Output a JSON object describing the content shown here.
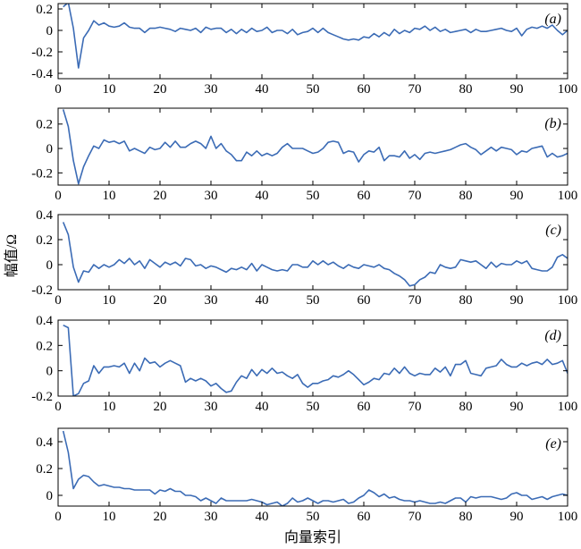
{
  "figure": {
    "ylabel": "幅值/Ω",
    "xlabel": "向量索引",
    "line_color": "#3b6bb5"
  },
  "chart_data": [
    {
      "type": "line",
      "panel_label": "(a)",
      "xlim": [
        0,
        100
      ],
      "ylim": [
        -0.45,
        0.25
      ],
      "xticks": [
        0,
        10,
        20,
        30,
        40,
        50,
        60,
        70,
        80,
        90,
        100
      ],
      "yticks": [
        0.2,
        0,
        -0.2,
        -0.4
      ],
      "ytick_labels": [
        "0.2",
        "0",
        "-0.2",
        "-0.4"
      ],
      "grid": false,
      "x_start": 1,
      "y": [
        0.22,
        0.26,
        0.02,
        -0.35,
        -0.07,
        0.0,
        0.09,
        0.05,
        0.07,
        0.04,
        0.03,
        0.04,
        0.07,
        0.03,
        0.02,
        0.02,
        -0.02,
        0.02,
        0.02,
        0.03,
        0.02,
        0.01,
        -0.01,
        0.02,
        0.01,
        0.0,
        0.02,
        -0.02,
        0.03,
        0.01,
        0.02,
        0.02,
        -0.02,
        0.01,
        -0.03,
        0.01,
        -0.02,
        0.02,
        -0.01,
        0.0,
        0.03,
        -0.02,
        0.0,
        0.0,
        -0.03,
        0.01,
        -0.04,
        -0.02,
        -0.01,
        0.02,
        -0.02,
        0.02,
        -0.02,
        -0.04,
        -0.06,
        -0.08,
        -0.09,
        -0.08,
        -0.09,
        -0.06,
        -0.07,
        -0.03,
        -0.06,
        -0.02,
        -0.05,
        0.01,
        -0.03,
        0.0,
        -0.02,
        0.02,
        0.01,
        0.04,
        0.0,
        0.03,
        -0.01,
        0.01,
        -0.02,
        -0.01,
        0.0,
        0.01,
        -0.02,
        0.01,
        -0.01,
        -0.01,
        0.0,
        0.01,
        0.02,
        0.0,
        -0.01,
        0.02,
        -0.05,
        0.01,
        0.03,
        0.02,
        0.04,
        0.02,
        0.05,
        0.0,
        -0.04,
        0.0,
        0.01
      ]
    },
    {
      "type": "line",
      "panel_label": "(b)",
      "xlim": [
        0,
        100
      ],
      "ylim": [
        -0.3,
        0.33
      ],
      "xticks": [
        0,
        10,
        20,
        30,
        40,
        50,
        60,
        70,
        80,
        90,
        100
      ],
      "yticks": [
        0.2,
        0,
        -0.2
      ],
      "ytick_labels": [
        "0.2",
        "0",
        "-0.2"
      ],
      "grid": false,
      "x_start": 1,
      "y": [
        0.32,
        0.18,
        -0.1,
        -0.29,
        -0.15,
        -0.06,
        0.02,
        0.0,
        0.07,
        0.05,
        0.06,
        0.04,
        0.06,
        -0.02,
        0.0,
        -0.02,
        -0.04,
        0.01,
        -0.01,
        0.0,
        0.05,
        0.01,
        0.06,
        0.01,
        0.01,
        0.04,
        0.06,
        0.04,
        0.0,
        0.1,
        0.0,
        0.04,
        -0.02,
        -0.05,
        -0.1,
        -0.1,
        -0.03,
        -0.06,
        -0.02,
        -0.06,
        -0.04,
        -0.06,
        -0.04,
        0.01,
        0.04,
        0.0,
        0.0,
        0.0,
        -0.02,
        -0.04,
        -0.03,
        0.0,
        0.05,
        0.06,
        0.05,
        -0.04,
        -0.02,
        -0.03,
        -0.11,
        -0.05,
        -0.02,
        -0.03,
        0.01,
        -0.1,
        -0.06,
        -0.06,
        -0.07,
        -0.02,
        -0.08,
        -0.05,
        -0.09,
        -0.04,
        -0.03,
        -0.04,
        -0.03,
        -0.02,
        -0.01,
        0.01,
        0.03,
        0.04,
        0.01,
        -0.01,
        -0.05,
        -0.02,
        0.01,
        -0.02,
        0.01,
        0.0,
        -0.01,
        -0.05,
        -0.02,
        -0.03,
        0.0,
        0.01,
        0.02,
        -0.07,
        -0.04,
        -0.07,
        -0.06,
        -0.04,
        0.01
      ]
    },
    {
      "type": "line",
      "panel_label": "(c)",
      "xlim": [
        0,
        100
      ],
      "ylim": [
        -0.2,
        0.4
      ],
      "xticks": [
        0,
        10,
        20,
        30,
        40,
        50,
        60,
        70,
        80,
        90,
        100
      ],
      "yticks": [
        0.4,
        0.2,
        0,
        -0.2
      ],
      "ytick_labels": [
        "0.4",
        "0.2",
        "0",
        "-0.2"
      ],
      "grid": false,
      "x_start": 1,
      "y": [
        0.34,
        0.24,
        -0.02,
        -0.14,
        -0.05,
        -0.06,
        0.0,
        -0.03,
        0.0,
        -0.02,
        0.0,
        0.04,
        0.01,
        0.05,
        0.0,
        0.03,
        -0.03,
        0.04,
        0.01,
        -0.02,
        0.02,
        0.0,
        0.02,
        -0.01,
        0.05,
        0.04,
        -0.01,
        0.0,
        -0.03,
        -0.01,
        -0.02,
        -0.04,
        -0.06,
        -0.03,
        -0.04,
        -0.02,
        -0.04,
        0.01,
        -0.05,
        0.0,
        -0.02,
        -0.04,
        -0.05,
        -0.04,
        -0.05,
        0.0,
        0.0,
        -0.02,
        -0.02,
        0.03,
        0.0,
        0.03,
        0.0,
        0.02,
        -0.01,
        -0.03,
        0.0,
        -0.02,
        -0.03,
        0.0,
        -0.01,
        -0.02,
        0.0,
        -0.03,
        -0.04,
        -0.07,
        -0.09,
        -0.12,
        -0.17,
        -0.16,
        -0.12,
        -0.1,
        -0.06,
        -0.07,
        0.0,
        -0.02,
        -0.03,
        -0.02,
        0.04,
        0.03,
        0.02,
        0.03,
        0.0,
        -0.03,
        0.02,
        -0.02,
        0.01,
        0.0,
        0.0,
        0.03,
        0.01,
        0.03,
        -0.03,
        -0.04,
        -0.05,
        -0.05,
        -0.02,
        0.06,
        0.08,
        0.05,
        0.05
      ]
    },
    {
      "type": "line",
      "panel_label": "(d)",
      "xlim": [
        0,
        100
      ],
      "ylim": [
        -0.2,
        0.4
      ],
      "xticks": [
        0,
        10,
        20,
        30,
        40,
        50,
        60,
        70,
        80,
        90,
        100
      ],
      "yticks": [
        0.4,
        0.2,
        0,
        -0.2
      ],
      "ytick_labels": [
        "0.4",
        "0.2",
        "0",
        "-0.2"
      ],
      "grid": false,
      "x_start": 1,
      "y": [
        0.36,
        0.34,
        -0.2,
        -0.18,
        -0.1,
        -0.08,
        0.04,
        -0.02,
        0.03,
        0.03,
        0.04,
        0.03,
        0.06,
        -0.02,
        0.06,
        0.0,
        0.1,
        0.06,
        0.07,
        0.03,
        0.06,
        0.08,
        0.06,
        0.04,
        -0.09,
        -0.06,
        -0.08,
        -0.06,
        -0.08,
        -0.12,
        -0.1,
        -0.14,
        -0.17,
        -0.16,
        -0.09,
        -0.04,
        -0.06,
        0.01,
        -0.04,
        0.01,
        -0.02,
        0.02,
        -0.02,
        -0.01,
        -0.04,
        -0.06,
        -0.03,
        -0.1,
        -0.13,
        -0.1,
        -0.1,
        -0.08,
        -0.07,
        -0.04,
        -0.05,
        -0.03,
        0.0,
        -0.03,
        -0.07,
        -0.11,
        -0.09,
        -0.06,
        -0.07,
        -0.02,
        -0.03,
        0.02,
        -0.02,
        0.03,
        -0.02,
        -0.04,
        -0.02,
        -0.03,
        -0.03,
        0.02,
        -0.01,
        0.03,
        -0.04,
        0.05,
        0.05,
        0.08,
        -0.02,
        -0.03,
        -0.04,
        0.02,
        0.03,
        0.04,
        0.09,
        0.05,
        0.03,
        0.03,
        0.06,
        0.04,
        0.06,
        0.07,
        0.05,
        0.09,
        0.05,
        0.06,
        0.08,
        -0.02,
        -0.01
      ]
    },
    {
      "type": "line",
      "panel_label": "(e)",
      "xlim": [
        0,
        100
      ],
      "ylim": [
        -0.08,
        0.5
      ],
      "xticks": [
        0,
        10,
        20,
        30,
        40,
        50,
        60,
        70,
        80,
        90,
        100
      ],
      "yticks": [
        0.4,
        0.2,
        0
      ],
      "ytick_labels": [
        "0.4",
        "0.2",
        "0"
      ],
      "grid": false,
      "x_start": 1,
      "y": [
        0.48,
        0.32,
        0.05,
        0.12,
        0.15,
        0.14,
        0.1,
        0.07,
        0.08,
        0.07,
        0.06,
        0.06,
        0.05,
        0.05,
        0.04,
        0.04,
        0.04,
        0.04,
        0.01,
        0.04,
        0.03,
        0.05,
        0.03,
        0.03,
        0.0,
        0.0,
        -0.01,
        -0.04,
        -0.02,
        -0.04,
        -0.06,
        -0.02,
        -0.04,
        -0.04,
        -0.04,
        -0.04,
        -0.04,
        -0.03,
        -0.04,
        -0.05,
        -0.07,
        -0.06,
        -0.05,
        -0.08,
        -0.06,
        -0.02,
        -0.05,
        -0.04,
        -0.02,
        -0.04,
        -0.06,
        -0.04,
        -0.04,
        -0.05,
        -0.04,
        -0.03,
        -0.06,
        -0.05,
        -0.02,
        0.0,
        0.04,
        0.02,
        -0.01,
        0.01,
        -0.02,
        -0.01,
        -0.03,
        -0.04,
        -0.04,
        -0.05,
        -0.04,
        -0.05,
        -0.06,
        -0.06,
        -0.05,
        -0.06,
        -0.04,
        -0.02,
        -0.02,
        -0.05,
        -0.01,
        -0.02,
        -0.01,
        -0.01,
        -0.01,
        -0.02,
        -0.03,
        -0.02,
        0.01,
        0.02,
        0.0,
        0.0,
        -0.03,
        -0.02,
        -0.01,
        -0.03,
        -0.01,
        0.0,
        0.01,
        0.0,
        0.02
      ]
    }
  ]
}
